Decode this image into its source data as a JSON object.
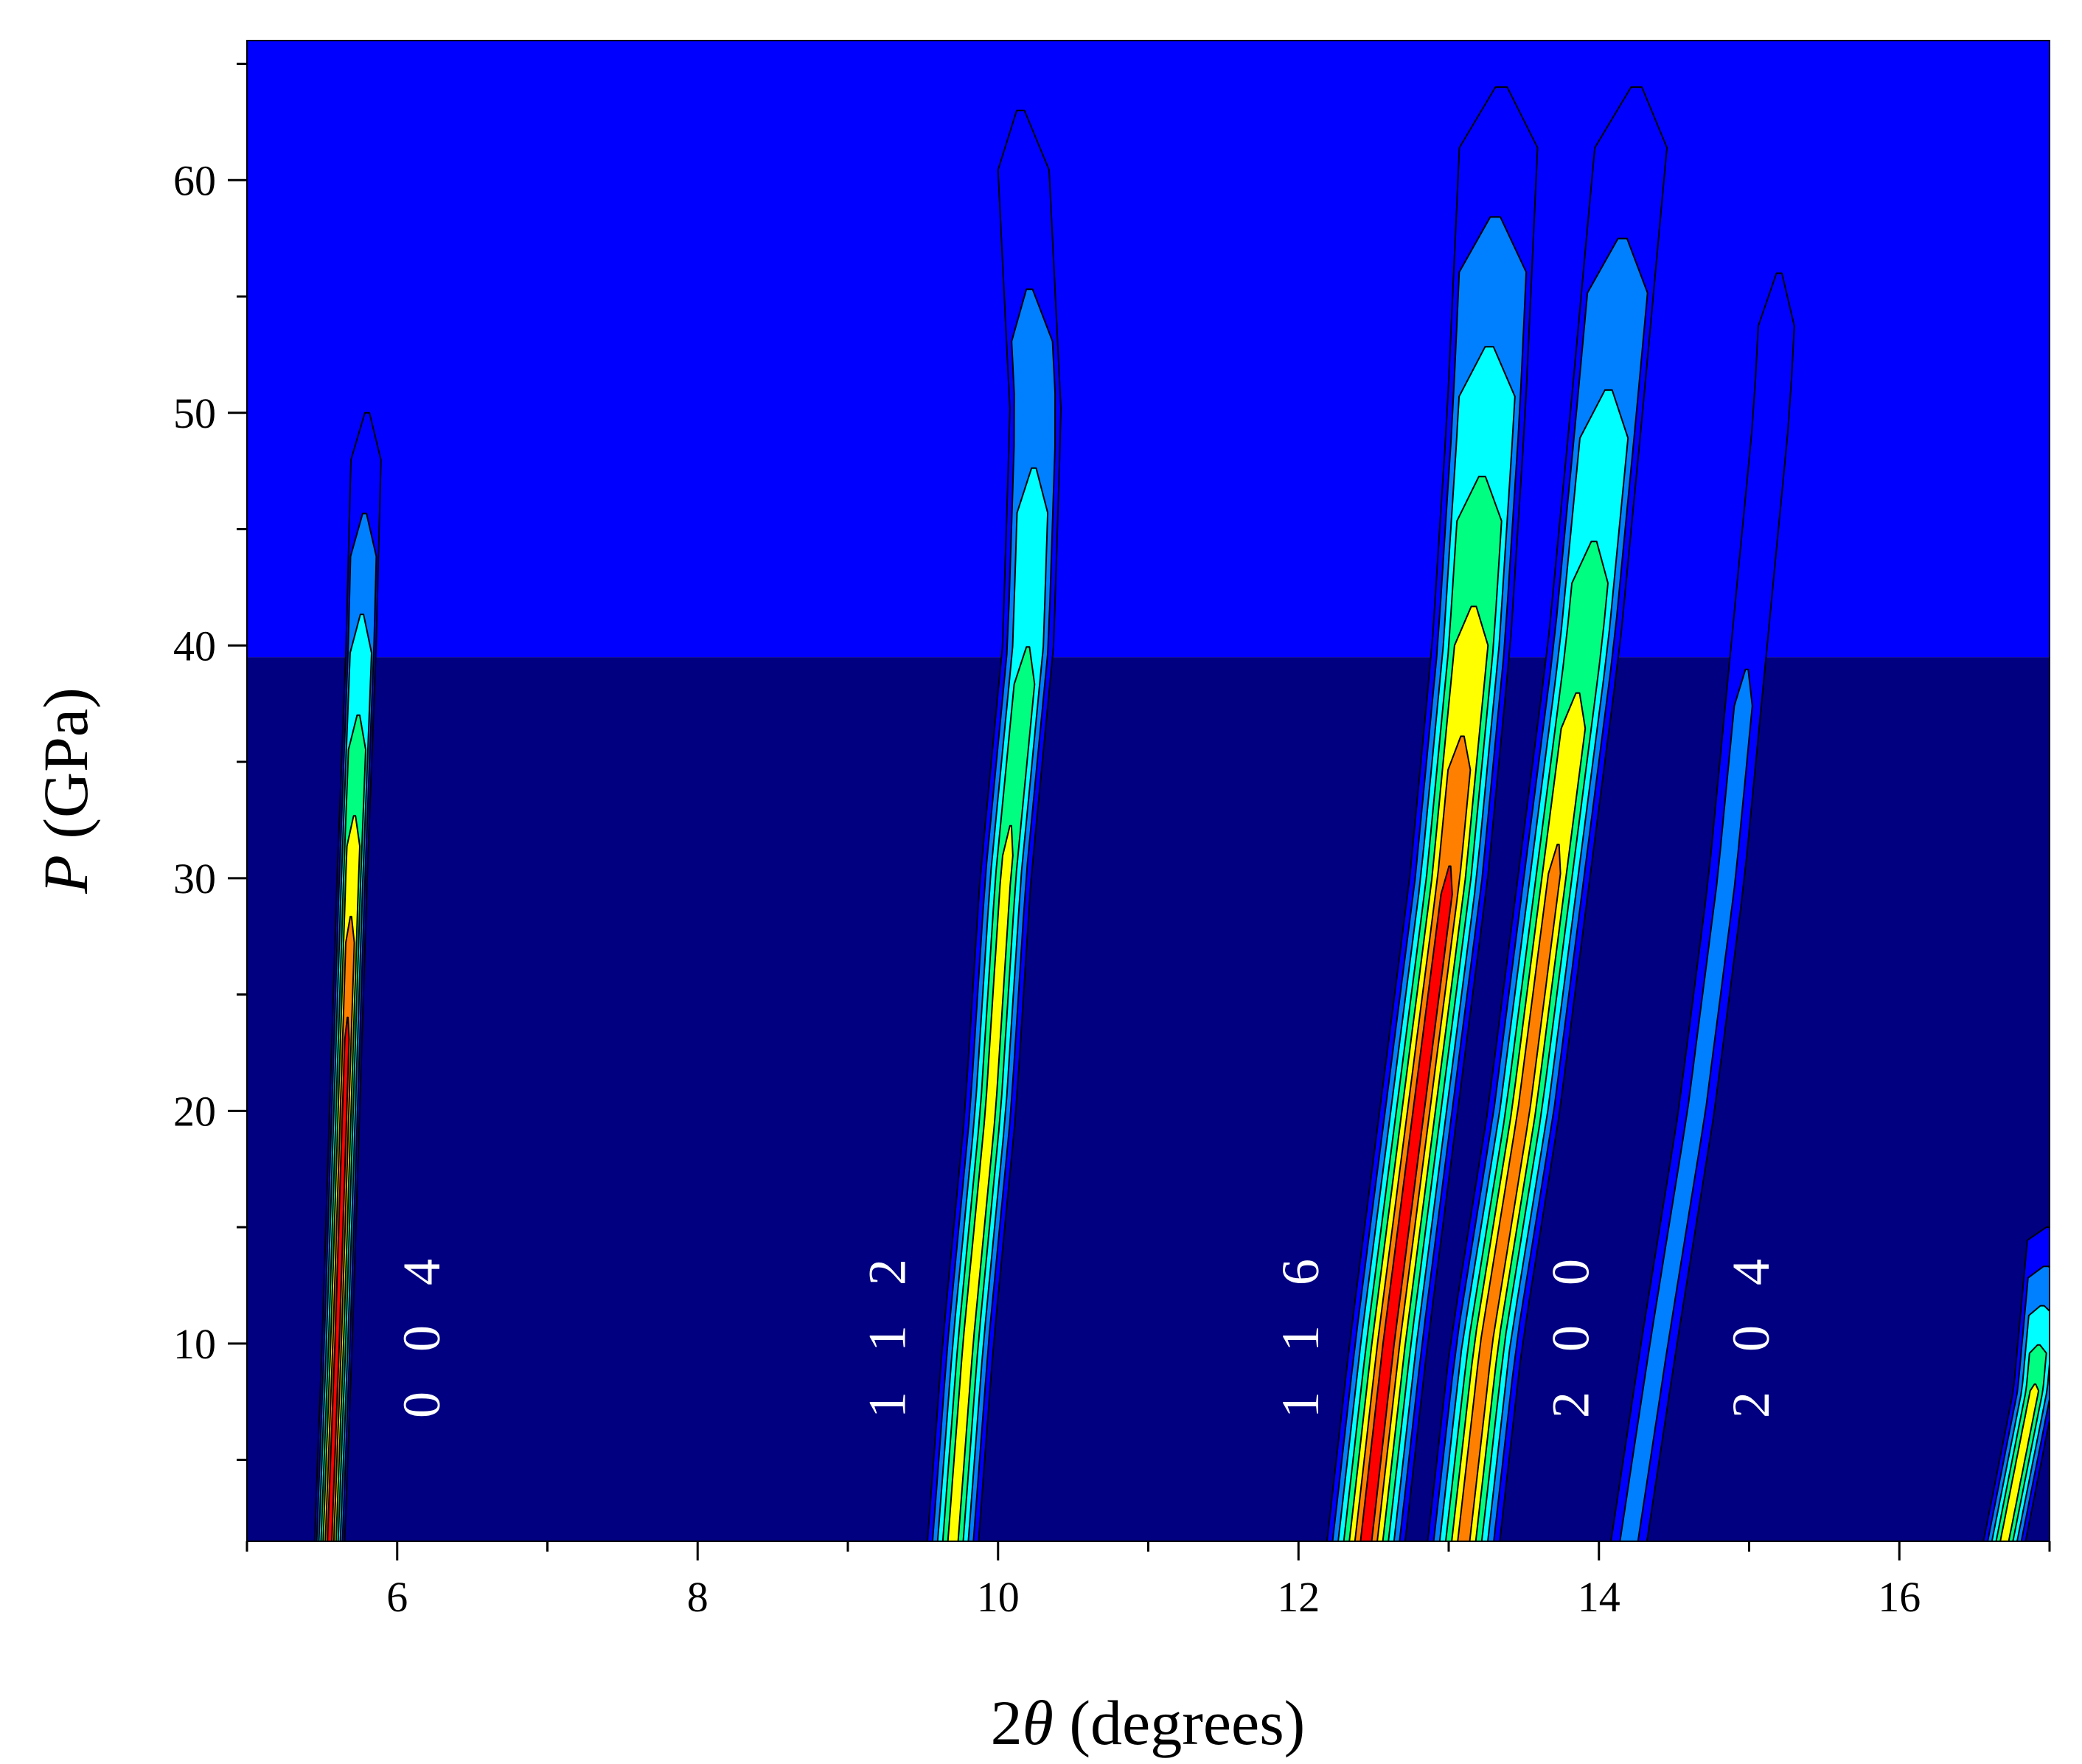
{
  "chart_data": {
    "type": "heatmap",
    "subtype": "filled-contour",
    "title": "",
    "xlabel": "2θ (degrees)",
    "xlabel_parts": {
      "prefix": "2",
      "symbol": "θ",
      "suffix": " (degrees)"
    },
    "ylabel": "P (GPa)",
    "ylabel_parts": {
      "symbol": "P",
      "suffix": " (GPa)"
    },
    "xlim": [
      5,
      17
    ],
    "ylim": [
      1.5,
      66
    ],
    "x_ticks": [
      6,
      8,
      10,
      12,
      14,
      16
    ],
    "y_ticks": [
      10,
      20,
      30,
      40,
      50,
      60
    ],
    "x_minor_step": 1,
    "y_minor_step": 5,
    "grid": false,
    "colormap": [
      "#000080",
      "#0000ff",
      "#0080ff",
      "#00ffff",
      "#00ff80",
      "#ffff00",
      "#ff8000",
      "#ff0000"
    ],
    "background_levels": [
      {
        "level": 0,
        "p_min": 1.5,
        "p_max": 39.5
      },
      {
        "level": 1,
        "p_min": 39.5,
        "p_max": 66
      }
    ],
    "peaks": [
      {
        "label": "0 0 4",
        "label_x": 6.2,
        "label_p": 10.5,
        "ridge": [
          [
            1.5,
            5.55
          ],
          [
            10,
            5.6
          ],
          [
            20,
            5.65
          ],
          [
            30,
            5.7
          ],
          [
            40,
            5.76
          ],
          [
            50,
            5.8
          ]
        ],
        "width": 0.1,
        "max_level": 7
      },
      {
        "label": "1 1 2",
        "label_x": 9.3,
        "label_p": 10.5,
        "ridge": [
          [
            1.5,
            9.7
          ],
          [
            10,
            9.8
          ],
          [
            20,
            9.95
          ],
          [
            30,
            10.05
          ],
          [
            40,
            10.2
          ],
          [
            50,
            10.25
          ],
          [
            63,
            10.15
          ]
        ],
        "width": 0.17,
        "max_level": 5
      },
      {
        "label": "1 1 6",
        "label_x": 12.05,
        "label_p": 10.5,
        "ridge": [
          [
            1.5,
            12.45
          ],
          [
            10,
            12.6
          ],
          [
            20,
            12.8
          ],
          [
            30,
            13.0
          ],
          [
            40,
            13.15
          ],
          [
            50,
            13.25
          ],
          [
            64,
            13.35
          ]
        ],
        "width": 0.26,
        "max_level": 7
      },
      {
        "label": "2 0 0",
        "label_x": 13.85,
        "label_p": 10.5,
        "ridge": [
          [
            1.5,
            13.1
          ],
          [
            10,
            13.25
          ],
          [
            20,
            13.5
          ],
          [
            30,
            13.7
          ],
          [
            40,
            13.9
          ],
          [
            50,
            14.05
          ],
          [
            64,
            14.25
          ]
        ],
        "width": 0.24,
        "max_level": 6
      },
      {
        "label": "2 0 4",
        "label_x": 15.05,
        "label_p": 10.5,
        "ridge": [
          [
            1.5,
            14.2
          ],
          [
            10,
            14.4
          ],
          [
            20,
            14.65
          ],
          [
            30,
            14.85
          ],
          [
            40,
            15.0
          ],
          [
            50,
            15.15
          ],
          [
            56,
            15.2
          ]
        ],
        "width": 0.12,
        "max_level": 2
      },
      {
        "label": "",
        "label_x": 0,
        "label_p": 0,
        "ridge": [
          [
            1.5,
            16.7
          ],
          [
            8,
            16.9
          ],
          [
            15,
            17.0
          ]
        ],
        "width": 0.14,
        "max_level": 5
      }
    ]
  }
}
